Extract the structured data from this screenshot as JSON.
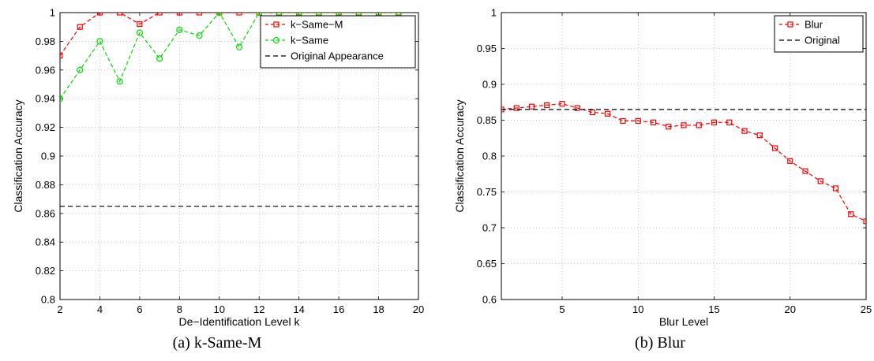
{
  "chart_data": [
    {
      "type": "line",
      "caption": "(a) k-Same-M",
      "xlabel": "De−Identification Level k",
      "ylabel": "Classification Accuracy",
      "xlim": [
        2,
        20
      ],
      "ylim": [
        0.8,
        1.0
      ],
      "xticks": [
        2,
        4,
        6,
        8,
        10,
        12,
        14,
        16,
        18,
        20
      ],
      "yticks": [
        0.8,
        0.82,
        0.84,
        0.86,
        0.88,
        0.9,
        0.92,
        0.94,
        0.96,
        0.98,
        1.0
      ],
      "ytick_labels": [
        "0.8",
        "0.82",
        "0.84",
        "0.86",
        "0.88",
        "0.9",
        "0.92",
        "0.94",
        "0.96",
        "0.98",
        "1"
      ],
      "grid": true,
      "legend": "top-right",
      "series": [
        {
          "name": "k−Same−M",
          "color": "#ff0000",
          "marker": "square",
          "x": [
            2,
            3,
            4,
            5,
            6,
            7,
            8,
            9,
            10,
            11,
            12,
            13,
            14,
            15,
            16,
            17,
            18,
            19
          ],
          "values": [
            0.97,
            0.99,
            1.0,
            1.0,
            0.992,
            1.0,
            1.0,
            1.0,
            1.0,
            1.0,
            1.0,
            1.0,
            1.0,
            1.0,
            1.0,
            1.0,
            1.0,
            1.0
          ]
        },
        {
          "name": "k−Same",
          "color": "#00dd00",
          "marker": "circle",
          "x": [
            2,
            3,
            4,
            5,
            6,
            7,
            8,
            9,
            10,
            11,
            12,
            13,
            14,
            15,
            16,
            17,
            18,
            19
          ],
          "values": [
            0.94,
            0.96,
            0.98,
            0.952,
            0.986,
            0.968,
            0.988,
            0.984,
            1.0,
            0.976,
            1.0,
            1.0,
            1.0,
            1.0,
            1.0,
            1.0,
            1.0,
            1.0
          ]
        },
        {
          "name": "Original Appearance",
          "color": "#000000",
          "marker": "none",
          "x": [
            2,
            20
          ],
          "values": [
            0.865,
            0.865
          ]
        }
      ]
    },
    {
      "type": "line",
      "caption": "(b) Blur",
      "xlabel": "Blur Level",
      "ylabel": "Classification Accuracy",
      "xlim": [
        1,
        25
      ],
      "ylim": [
        0.6,
        1.0
      ],
      "xticks": [
        5,
        10,
        15,
        20,
        25
      ],
      "yticks": [
        0.6,
        0.65,
        0.7,
        0.75,
        0.8,
        0.85,
        0.9,
        0.95,
        1.0
      ],
      "ytick_labels": [
        "0.6",
        "0.65",
        "0.7",
        "0.75",
        "0.8",
        "0.85",
        "0.9",
        "0.95",
        "1"
      ],
      "grid": true,
      "legend": "top-right",
      "series": [
        {
          "name": "Blur",
          "color": "#ff0000",
          "marker": "square",
          "x": [
            1,
            2,
            3,
            4,
            5,
            6,
            7,
            8,
            9,
            10,
            11,
            12,
            13,
            14,
            15,
            16,
            17,
            18,
            19,
            20,
            21,
            22,
            23,
            24,
            25
          ],
          "values": [
            0.865,
            0.867,
            0.869,
            0.871,
            0.873,
            0.867,
            0.861,
            0.859,
            0.849,
            0.849,
            0.847,
            0.841,
            0.843,
            0.843,
            0.847,
            0.847,
            0.835,
            0.829,
            0.811,
            0.793,
            0.779,
            0.765,
            0.755,
            0.719,
            0.709
          ]
        },
        {
          "name": "Original",
          "color": "#000000",
          "marker": "none",
          "x": [
            1,
            25
          ],
          "values": [
            0.865,
            0.865
          ]
        }
      ]
    }
  ]
}
